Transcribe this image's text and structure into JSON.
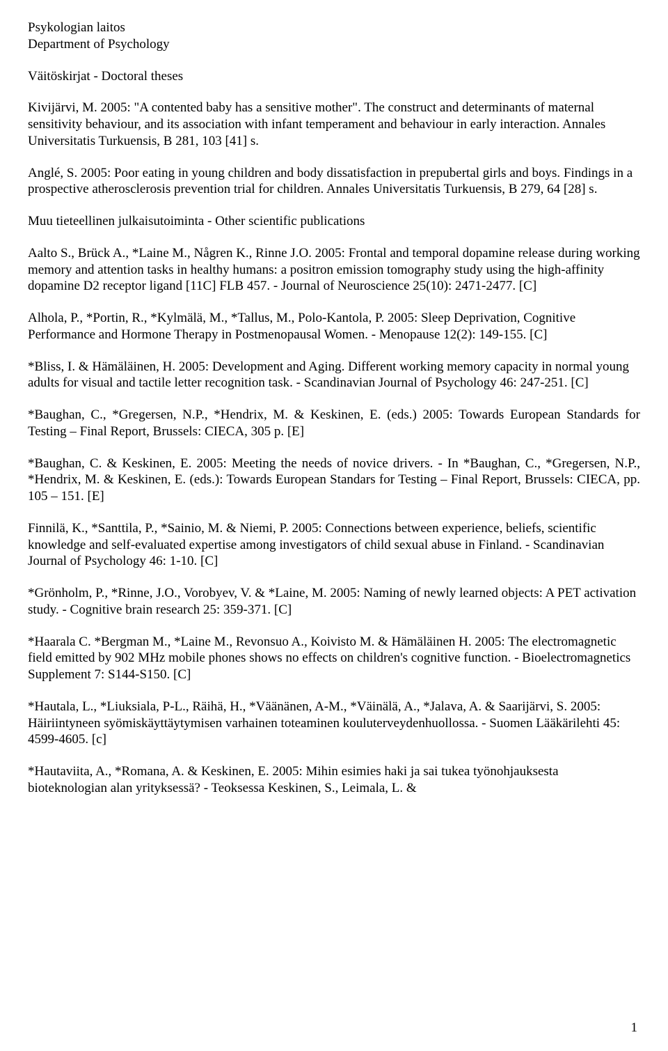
{
  "header": {
    "dept_fi": "Psykologian laitos",
    "dept_en": "Department of Psychology",
    "section": "Väitöskirjat - Doctoral theses"
  },
  "entries": [
    {
      "text": "Kivijärvi, M. 2005: \"A contented baby has a sensitive mother\". The construct and determinants of maternal sensitivity behaviour, and its association with infant temperament and behaviour in early interaction. Annales Universitatis Turkuensis, B 281, 103 [41] s.",
      "justify": false
    },
    {
      "text": "Anglé, S. 2005: Poor eating in young children and body dissatisfaction in prepubertal girls and boys. Findings in a prospective atherosclerosis prevention trial for children. Annales Universitatis Turkuensis, B 279, 64 [28] s.",
      "justify": false
    }
  ],
  "subsection": "Muu tieteellinen julkaisutoiminta - Other scientific publications",
  "pubs": [
    {
      "text": "Aalto S., Brück A., *Laine M., Någren K., Rinne J.O. 2005: Frontal and temporal dopamine release during working memory and attention tasks in healthy humans: a positron emission tomography study using the high-affinity dopamine D2 receptor ligand [11C] FLB 457. - Journal of Neuroscience 25(10): 2471-2477. [C]",
      "justify": false
    },
    {
      "text": "Alhola, P., *Portin, R., *Kylmälä, M., *Tallus, M., Polo-Kantola, P. 2005: Sleep Deprivation, Cognitive Performance and Hormone Therapy in Postmenopausal Women. - Menopause 12(2): 149-155. [C]",
      "justify": false
    },
    {
      "text": "*Bliss, I. & Hämäläinen, H. 2005: Development and Aging. Different working memory capacity in normal young adults for visual and tactile letter recognition task. - Scandinavian Journal of Psychology 46: 247-251. [C]",
      "justify": false
    },
    {
      "text": "*Baughan, C., *Gregersen, N.P., *Hendrix, M. & Keskinen, E. (eds.) 2005: Towards European Standards for Testing – Final Report, Brussels: CIECA, 305 p.  [E]",
      "justify": true
    },
    {
      "text": "*Baughan, C. & Keskinen, E. 2005: Meeting the needs of novice drivers. - In *Baughan, C., *Gregersen, N.P., *Hendrix, M. & Keskinen, E. (eds.): Towards European Standars for Testing – Final Report, Brussels: CIECA, pp. 105 – 151. [E]",
      "justify": true
    },
    {
      "text": "Finnilä, K., *Santtila, P., *Sainio, M. & Niemi, P. 2005: Connections between experience, beliefs, scientific knowledge and self-evaluated expertise among investigators of child sexual abuse in Finland. - Scandinavian Journal of Psychology 46: 1-10. [C]",
      "justify": false
    },
    {
      "text": "*Grönholm, P., *Rinne, J.O., Vorobyev, V. & *Laine, M. 2005: Naming of newly learned objects: A PET activation study. - Cognitive brain research 25: 359-371. [C]",
      "justify": false
    },
    {
      "text": "*Haarala C. *Bergman M., *Laine M., Revonsuo A.,  Koivisto M. & Hämäläinen H. 2005: The electromagnetic field emitted by 902 MHz mobile phones shows no effects on children's cognitive function. - Bioelectromagnetics Supplement 7: S144-S150. [C]",
      "justify": false
    },
    {
      "text": "*Hautala, L., *Liuksiala, P-L., Räihä, H., *Väänänen, A-M., *Väinälä, A., *Jalava, A. & Saarijärvi, S. 2005: Häiriintyneen syömiskäyttäytymisen varhainen toteaminen kouluterveydenhuollossa. - Suomen Lääkärilehti 45: 4599-4605. [c]",
      "justify": false
    },
    {
      "text": "*Hautaviita, A., *Romana, A. & Keskinen, E. 2005: Mihin esimies haki ja sai tukea työnohjauksesta bioteknologian alan yrityksessä? - Teoksessa Keskinen, S., Leimala, L. &",
      "justify": false
    }
  ],
  "page_number": "1"
}
